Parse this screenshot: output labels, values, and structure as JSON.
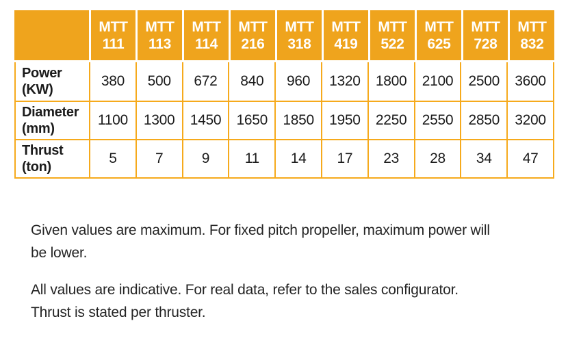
{
  "colors": {
    "header_background": "#EFA41D",
    "grid_border": "#F6AA1C",
    "header_text": "#FFFFFF",
    "body_text": "#1B1B1B"
  },
  "table": {
    "corner_label": "",
    "models": [
      {
        "prefix": "MTT",
        "number": "111"
      },
      {
        "prefix": "MTT",
        "number": "113"
      },
      {
        "prefix": "MTT",
        "number": "114"
      },
      {
        "prefix": "MTT",
        "number": "216"
      },
      {
        "prefix": "MTT",
        "number": "318"
      },
      {
        "prefix": "MTT",
        "number": "419"
      },
      {
        "prefix": "MTT",
        "number": "522"
      },
      {
        "prefix": "MTT",
        "number": "625"
      },
      {
        "prefix": "MTT",
        "number": "728"
      },
      {
        "prefix": "MTT",
        "number": "832"
      }
    ],
    "rows": [
      {
        "label": "Power\n(KW)",
        "values": [
          "380",
          "500",
          "672",
          "840",
          "960",
          "1320",
          "1800",
          "2100",
          "2500",
          "3600"
        ]
      },
      {
        "label": "Diameter\n(mm)",
        "values": [
          "1100",
          "1300",
          "1450",
          "1650",
          "1850",
          "1950",
          "2250",
          "2550",
          "2850",
          "3200"
        ]
      },
      {
        "label": "Thrust\n(ton)",
        "values": [
          "5",
          "7",
          "9",
          "11",
          "14",
          "17",
          "23",
          "28",
          "34",
          "47"
        ]
      }
    ]
  },
  "notes": [
    "Given values are maximum. For fixed pitch propeller, maximum power will\nbe lower.",
    "All values are indicative. For real data, refer to the sales configurator.\nThrust is stated per thruster."
  ]
}
